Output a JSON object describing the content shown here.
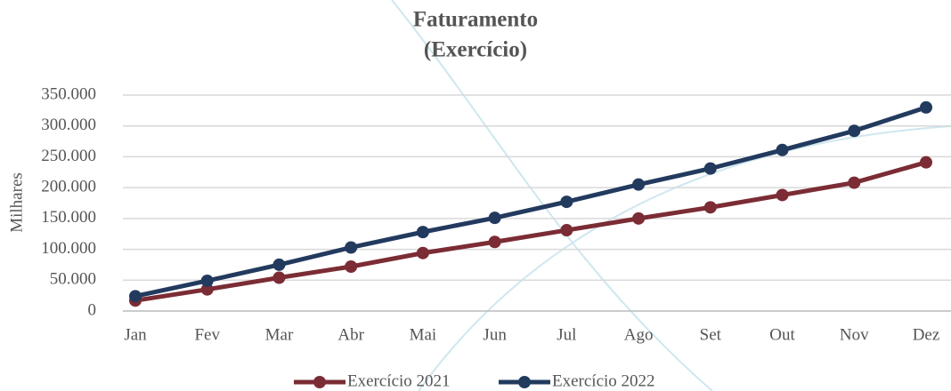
{
  "chart_data": {
    "type": "line",
    "title": [
      "Faturamento",
      "(Exercício)"
    ],
    "y_label": "Milhares",
    "categories": [
      "Jan",
      "Fev",
      "Mar",
      "Abr",
      "Mai",
      "Jun",
      "Jul",
      "Ago",
      "Set",
      "Out",
      "Nov",
      "Dez"
    ],
    "series": [
      {
        "name": "Exercício 2021",
        "color": "#7b2c34",
        "values": [
          17000,
          35000,
          54000,
          72000,
          94000,
          112000,
          131000,
          150000,
          168000,
          188000,
          208000,
          241000
        ]
      },
      {
        "name": "Exercício 2022",
        "color": "#223a5e",
        "values": [
          24000,
          49000,
          75000,
          103000,
          128000,
          151000,
          177000,
          205000,
          231000,
          261000,
          292000,
          330000
        ]
      }
    ],
    "ylim": [
      0,
      350000
    ],
    "yticks": [
      0,
      {
        "value": 50000,
        "label": "50.000"
      },
      {
        "value": 100000,
        "label": "100.000"
      },
      {
        "value": 150000,
        "label": "150.000"
      },
      {
        "value": 200000,
        "label": "200.000"
      },
      {
        "value": 250000,
        "label": "250.000"
      },
      {
        "value": 300000,
        "label": "300.000"
      },
      {
        "value": 350000,
        "label": "350.000"
      }
    ],
    "grid": true,
    "legend": "bottom"
  }
}
